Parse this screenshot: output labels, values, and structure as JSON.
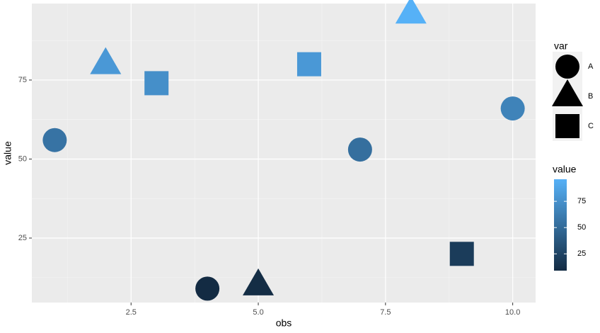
{
  "chart_data": {
    "type": "scatter",
    "x_label": "obs",
    "y_label": "value",
    "x": [
      1,
      2,
      3,
      4,
      5,
      6,
      7,
      8,
      9,
      10
    ],
    "values": [
      56,
      80,
      74,
      9,
      10,
      80,
      53,
      96,
      20,
      66
    ],
    "groups": [
      "A",
      "B",
      "C",
      "A",
      "B",
      "C",
      "A",
      "B",
      "C",
      "A"
    ],
    "xlim": [
      0.55,
      10.45
    ],
    "ylim": [
      4.6,
      99.2
    ],
    "xticks": [
      {
        "value": 2.5,
        "label": "2.5"
      },
      {
        "value": 5,
        "label": "5.0"
      },
      {
        "value": 7.5,
        "label": "7.5"
      },
      {
        "value": 10,
        "label": "10.0"
      }
    ],
    "yticks": [
      25,
      50,
      75
    ],
    "grid": true,
    "shape_legend": {
      "title": "var",
      "labels": [
        "A",
        "B",
        "C"
      ],
      "shapes": [
        "circle",
        "triangle",
        "square"
      ]
    },
    "color_legend": {
      "title": "value",
      "low": "#132B43",
      "high": "#56B1F7",
      "ticks": [
        25,
        50,
        75
      ]
    }
  }
}
